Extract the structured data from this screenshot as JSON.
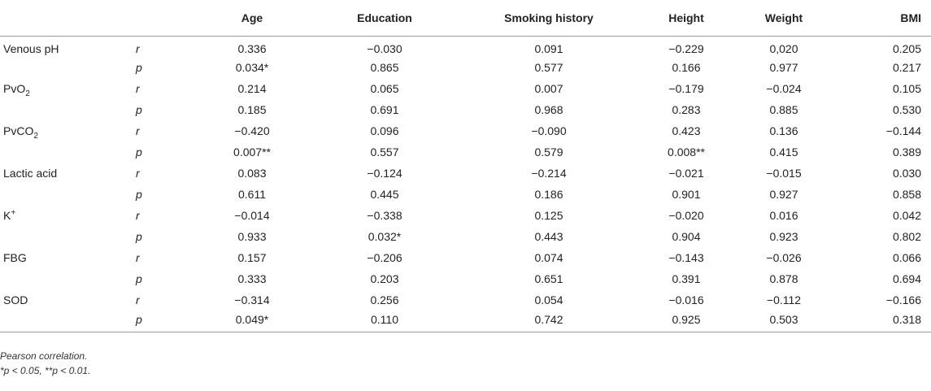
{
  "table": {
    "columns": [
      "Age",
      "Education",
      "Smoking history",
      "Height",
      "Weight",
      "BMI"
    ],
    "rows": [
      {
        "variable": "Venous pH",
        "r": [
          "0.336",
          "−0.030",
          "0.091",
          "−0.229",
          "0,020",
          "0.205"
        ],
        "p": [
          "0.034*",
          "0.865",
          "0.577",
          "0.166",
          "0.977",
          "0.217"
        ]
      },
      {
        "variable": "PvO",
        "variable_sub": "2",
        "r": [
          "0.214",
          "0.065",
          "0.007",
          "−0.179",
          "−0.024",
          "0.105"
        ],
        "p": [
          "0.185",
          "0.691",
          "0.968",
          "0.283",
          "0.885",
          "0.530"
        ]
      },
      {
        "variable": "PvCO",
        "variable_sub": "2",
        "r": [
          "−0.420",
          "0.096",
          "−0.090",
          "0.423",
          "0.136",
          "−0.144"
        ],
        "p": [
          "0.007**",
          "0.557",
          "0.579",
          "0.008**",
          "0.415",
          "0.389"
        ]
      },
      {
        "variable": "Lactic acid",
        "r": [
          "0.083",
          "−0.124",
          "−0.214",
          "−0.021",
          "−0.015",
          "0.030"
        ],
        "p": [
          "0.611",
          "0.445",
          "0.186",
          "0.901",
          "0.927",
          "0.858"
        ]
      },
      {
        "variable": "K",
        "variable_sup": "+",
        "r": [
          "−0.014",
          "−0.338",
          "0.125",
          "−0.020",
          "0.016",
          "0.042"
        ],
        "p": [
          "0.933",
          "0.032*",
          "0.443",
          "0.904",
          "0.923",
          "0.802"
        ]
      },
      {
        "variable": "FBG",
        "r": [
          "0.157",
          "−0.206",
          "0.074",
          "−0.143",
          "−0.026",
          "0.066"
        ],
        "p": [
          "0.333",
          "0.203",
          "0.651",
          "0.391",
          "0.878",
          "0.694"
        ]
      },
      {
        "variable": "SOD",
        "r": [
          "−0.314",
          "0.256",
          "0.054",
          "−0.016",
          "−0.112",
          "−0.166"
        ],
        "p": [
          "0.049*",
          "0.110",
          "0.742",
          "0.925",
          "0.503",
          "0.318"
        ]
      }
    ],
    "stat_labels": {
      "r": "r",
      "p": "p"
    }
  },
  "footnotes": {
    "method": "Pearson correlation.",
    "significance": "*p < 0.05, **p < 0.01."
  }
}
